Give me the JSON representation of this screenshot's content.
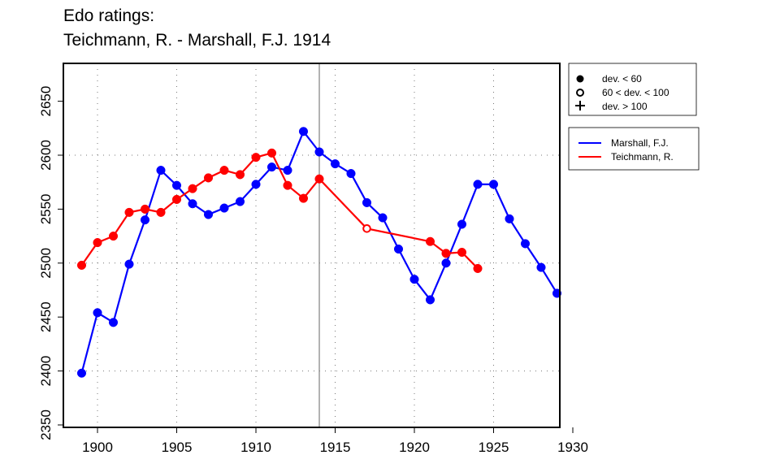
{
  "chart_data": {
    "type": "line",
    "title": "Edo ratings:",
    "subtitle": "Teichmann, R. - Marshall, F.J. 1914",
    "xlabel": "",
    "ylabel": "",
    "xlim": [
      1898,
      1930.5
    ],
    "ylim": [
      2350,
      2685
    ],
    "x_ticks": [
      "1900",
      "1905",
      "1910",
      "1915",
      "1920",
      "1925",
      "1930"
    ],
    "y_ticks": [
      "2350",
      "2400",
      "2450",
      "2500",
      "2550",
      "2600",
      "2650"
    ],
    "grid": "dotted",
    "event_year": 1914,
    "series": [
      {
        "name": "Marshall, F.J.",
        "color": "#0000ff",
        "x": [
          1899,
          1900,
          1901,
          1902,
          1903,
          1904,
          1905,
          1906,
          1907,
          1908,
          1909,
          1910,
          1911,
          1912,
          1913,
          1914,
          1915,
          1916,
          1917,
          1918,
          1919,
          1920,
          1921,
          1922,
          1923,
          1924,
          1925,
          1926,
          1927,
          1928,
          1929
        ],
        "y": [
          2398,
          2454,
          2445,
          2499,
          2540,
          2586,
          2572,
          2555,
          2545,
          2551,
          2557,
          2573,
          2589,
          2586,
          2622,
          2603,
          2592,
          2583,
          2556,
          2542,
          2513,
          2485,
          2466,
          2500,
          2536,
          2573,
          2573,
          2541,
          2518,
          2496,
          2472
        ],
        "markers": [
          "filled",
          "filled",
          "filled",
          "filled",
          "filled",
          "filled",
          "filled",
          "filled",
          "filled",
          "filled",
          "filled",
          "filled",
          "filled",
          "filled",
          "filled",
          "filled",
          "filled",
          "filled",
          "filled",
          "filled",
          "filled",
          "filled",
          "filled",
          "filled",
          "filled",
          "filled",
          "filled",
          "filled",
          "filled",
          "filled",
          "filled"
        ]
      },
      {
        "name": "Teichmann, R.",
        "color": "#ff0000",
        "x": [
          1899,
          1900,
          1901,
          1902,
          1903,
          1904,
          1905,
          1906,
          1907,
          1908,
          1909,
          1910,
          1911,
          1912,
          1913,
          1914,
          1917,
          1921,
          1922,
          1923,
          1924
        ],
        "y": [
          2498,
          2519,
          2525,
          2547,
          2550,
          2547,
          2559,
          2569,
          2579,
          2586,
          2582,
          2598,
          2602,
          2572,
          2560,
          2578,
          2532,
          2520,
          2509,
          2510,
          2495
        ],
        "markers": [
          "filled",
          "filled",
          "filled",
          "filled",
          "filled",
          "filled",
          "filled",
          "filled",
          "filled",
          "filled",
          "filled",
          "filled",
          "filled",
          "filled",
          "filled",
          "filled",
          "open",
          "filled",
          "filled",
          "filled",
          "filled"
        ]
      }
    ],
    "legend_markers": {
      "placement": "right-top",
      "entries": [
        {
          "symbol": "filled-circle",
          "label": "dev. < 60"
        },
        {
          "symbol": "open-circle",
          "label": "60 < dev. < 100"
        },
        {
          "symbol": "plus",
          "label": "dev. > 100"
        }
      ]
    },
    "legend_series": {
      "placement": "right",
      "entries": [
        {
          "label": "Marshall, F.J.",
          "color": "#0000ff"
        },
        {
          "label": "Teichmann, R.",
          "color": "#ff0000"
        }
      ]
    }
  }
}
